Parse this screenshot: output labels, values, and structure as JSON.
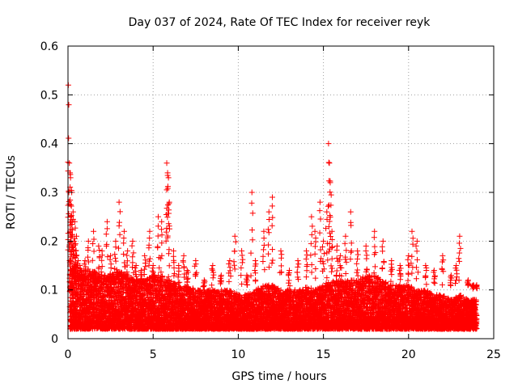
{
  "chart_data": {
    "type": "scatter",
    "title": "Day 037 of 2024, Rate Of TEC Index for receiver reyk",
    "xlabel": "GPS time / hours",
    "ylabel": "ROTI / TECUs",
    "xlim": [
      0,
      25
    ],
    "ylim": [
      0,
      0.6
    ],
    "xticks": [
      0,
      5,
      10,
      15,
      20,
      25
    ],
    "yticks": [
      0,
      0.1,
      0.2,
      0.3,
      0.4,
      0.5,
      0.6
    ],
    "xtick_labels": [
      "0",
      "5",
      "10",
      "15",
      "20",
      "25"
    ],
    "ytick_labels": [
      "0",
      "0.1",
      "0.2",
      "0.3",
      "0.4",
      "0.5",
      "0.6"
    ],
    "grid": true,
    "marker": "plus",
    "marker_color": "#ff0000",
    "series": [
      {
        "name": "ROTI",
        "x": [
          0.02,
          0.05,
          0.08,
          0.12,
          0.15,
          0.18,
          0.22,
          0.25,
          0.3,
          0.35,
          0.4,
          0.45,
          0.5,
          0.6,
          0.7,
          0.8,
          1.0,
          1.2,
          1.5,
          1.8,
          2.0,
          2.3,
          2.5,
          2.8,
          3.0,
          3.3,
          3.5,
          3.8,
          4.0,
          4.3,
          4.5,
          4.8,
          5.0,
          5.3,
          5.5,
          5.8,
          5.85,
          5.9,
          5.95,
          6.2,
          6.5,
          6.8,
          7.0,
          7.5,
          8.0,
          8.5,
          9.0,
          9.5,
          9.8,
          10.2,
          10.5,
          10.8,
          11.0,
          11.5,
          11.8,
          12.0,
          12.5,
          13.0,
          13.5,
          14.0,
          14.3,
          14.5,
          14.8,
          15.0,
          15.2,
          15.3,
          15.35,
          15.4,
          15.5,
          15.8,
          16.0,
          16.3,
          16.6,
          17.0,
          17.5,
          18.0,
          18.5,
          19.0,
          19.5,
          20.0,
          20.2,
          20.5,
          21.0,
          21.5,
          22.0,
          22.5,
          22.8,
          23.0,
          23.5,
          23.8,
          24.0
        ],
        "y": [
          0.52,
          0.3,
          0.36,
          0.34,
          0.33,
          0.25,
          0.3,
          0.24,
          0.26,
          0.2,
          0.24,
          0.18,
          0.21,
          0.16,
          0.15,
          0.14,
          0.16,
          0.2,
          0.22,
          0.19,
          0.18,
          0.24,
          0.17,
          0.2,
          0.28,
          0.22,
          0.18,
          0.2,
          0.15,
          0.14,
          0.17,
          0.22,
          0.15,
          0.25,
          0.24,
          0.36,
          0.34,
          0.33,
          0.28,
          0.18,
          0.15,
          0.17,
          0.14,
          0.16,
          0.12,
          0.15,
          0.13,
          0.16,
          0.21,
          0.18,
          0.13,
          0.3,
          0.16,
          0.22,
          0.26,
          0.29,
          0.18,
          0.14,
          0.16,
          0.18,
          0.25,
          0.22,
          0.28,
          0.2,
          0.26,
          0.4,
          0.36,
          0.32,
          0.22,
          0.19,
          0.17,
          0.21,
          0.26,
          0.18,
          0.19,
          0.22,
          0.2,
          0.16,
          0.15,
          0.17,
          0.22,
          0.2,
          0.15,
          0.14,
          0.17,
          0.13,
          0.15,
          0.21,
          0.12,
          0.11,
          0.11
        ]
      },
      {
        "name": "ROTI baseline (dense band)",
        "x": [
          0.1,
          0.5,
          1.0,
          1.5,
          2.0,
          2.5,
          3.0,
          3.5,
          4.0,
          4.5,
          5.0,
          5.5,
          6.0,
          6.5,
          7.0,
          7.5,
          8.0,
          8.5,
          9.0,
          9.5,
          10.0,
          10.5,
          11.0,
          11.5,
          12.0,
          12.5,
          13.0,
          13.5,
          14.0,
          14.5,
          15.0,
          15.5,
          16.0,
          16.5,
          17.0,
          17.5,
          18.0,
          18.5,
          19.0,
          19.5,
          20.0,
          20.5,
          21.0,
          21.5,
          22.0,
          22.5,
          23.0,
          23.5,
          24.0
        ],
        "y_low": [
          0.02,
          0.02,
          0.02,
          0.02,
          0.02,
          0.02,
          0.02,
          0.02,
          0.02,
          0.02,
          0.02,
          0.02,
          0.02,
          0.02,
          0.02,
          0.02,
          0.02,
          0.02,
          0.02,
          0.02,
          0.02,
          0.02,
          0.02,
          0.02,
          0.02,
          0.02,
          0.02,
          0.02,
          0.02,
          0.02,
          0.02,
          0.02,
          0.02,
          0.02,
          0.02,
          0.02,
          0.02,
          0.02,
          0.02,
          0.02,
          0.02,
          0.02,
          0.02,
          0.02,
          0.02,
          0.02,
          0.02,
          0.02,
          0.02
        ],
        "y_high": [
          0.16,
          0.15,
          0.14,
          0.14,
          0.13,
          0.13,
          0.14,
          0.13,
          0.12,
          0.12,
          0.13,
          0.13,
          0.12,
          0.11,
          0.11,
          0.1,
          0.1,
          0.1,
          0.1,
          0.1,
          0.09,
          0.09,
          0.1,
          0.11,
          0.11,
          0.1,
          0.1,
          0.1,
          0.11,
          0.1,
          0.11,
          0.12,
          0.12,
          0.12,
          0.12,
          0.13,
          0.13,
          0.12,
          0.11,
          0.11,
          0.11,
          0.1,
          0.1,
          0.09,
          0.09,
          0.08,
          0.09,
          0.08,
          0.08
        ]
      }
    ]
  }
}
